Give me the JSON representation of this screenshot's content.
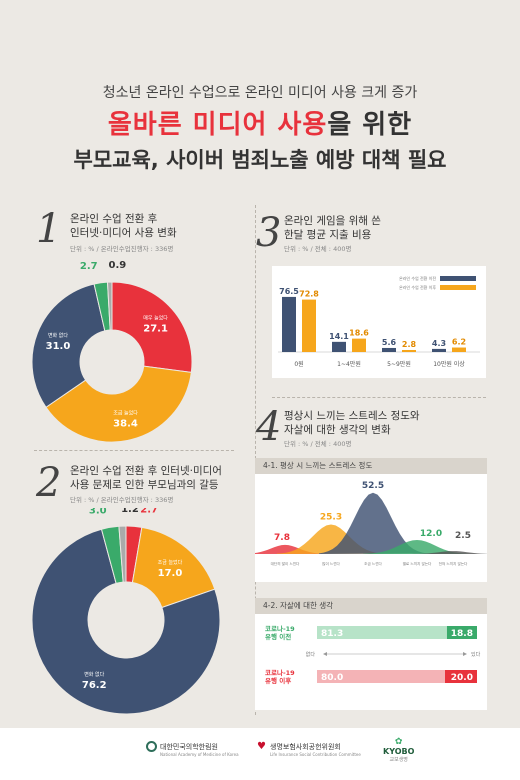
{
  "header": {
    "subtitle": "청소년 온라인 수업으로 온라인 미디어 사용 크게 증가",
    "title_red": "올바른 미디어 사용",
    "title_tail": "을 위한",
    "title_line2": "부모교육, 사이버 범죄노출 예방 대책 필요"
  },
  "sections": {
    "s1": {
      "num": "1",
      "line1": "온라인 수업 전환 후",
      "line2": "인터넷·미디어 사용 변화",
      "unit": "단위 : % / 온라인수업진행자 : 336명"
    },
    "s2": {
      "num": "2",
      "line1": "온라인 수업 전환 후 인터넷·미디어",
      "line2": "사용 문제로 인한 부모님과의 갈등",
      "unit": "단위 : % / 온라인수업진행자 : 336명"
    },
    "s3": {
      "num": "3",
      "line1": "온라인 게임을 위해 쓴",
      "line2": "한달 평균 지출 비용",
      "unit": "단위 : % / 전체 : 400명"
    },
    "s4": {
      "num": "4",
      "line1": "평상시 느끼는 스트레스 정도와",
      "line2": "자살에 대한 생각의 변화",
      "unit": "단위 : % / 전체 : 400명"
    }
  },
  "colors": {
    "red": "#e8323c",
    "orange": "#f6a61c",
    "navy": "#3f5273",
    "green": "#3aaa6a",
    "gray": "#aaaaaa",
    "dark": "#555555"
  },
  "chart_data": [
    {
      "type": "pie",
      "id": "donut1",
      "slices": [
        {
          "label": "매우 늘었다",
          "value": 27.1,
          "color": "#e8323c"
        },
        {
          "label": "조금 늘었다",
          "value": 38.4,
          "color": "#f6a61c"
        },
        {
          "label": "변화 없다",
          "value": 31.0,
          "color": "#3f5273"
        },
        {
          "label": "조금 줄었다",
          "value": 2.7,
          "color": "#3aaa6a"
        },
        {
          "label": "매우 줄었다",
          "value": 0.9,
          "color": "#aaaaaa"
        }
      ]
    },
    {
      "type": "pie",
      "id": "donut2",
      "slices": [
        {
          "label": "매우 늘었다",
          "value": 2.7,
          "color": "#e8323c"
        },
        {
          "label": "조금 늘었다",
          "value": 17.0,
          "color": "#f6a61c"
        },
        {
          "label": "변화 없다",
          "value": 76.2,
          "color": "#3f5273"
        },
        {
          "label": "조금 줄었다",
          "value": 3.0,
          "color": "#3aaa6a"
        },
        {
          "label": "매우 줄었다",
          "value": 1.2,
          "color": "#aaaaaa"
        }
      ]
    },
    {
      "type": "bar",
      "id": "bars3",
      "categories": [
        "0원",
        "1~4만원",
        "5~9만원",
        "10만원 이상"
      ],
      "series": [
        {
          "name": "온라인 수업 전환 이전",
          "values": [
            76.5,
            14.1,
            5.6,
            4.3
          ],
          "color": "#3f5273"
        },
        {
          "name": "온라인 수업 전환 이후",
          "values": [
            72.8,
            18.6,
            2.8,
            6.2
          ],
          "color": "#f6a61c"
        }
      ],
      "ylim": [
        0,
        100
      ]
    },
    {
      "type": "area",
      "id": "stress",
      "title": "4-1. 평상 시 느끼는 스트레스 정도",
      "categories": [
        "대단히 많이 느낀다",
        "많이 느낀다",
        "조금 느낀다",
        "별로 느끼지 않는다",
        "전혀 느끼지 않는다"
      ],
      "values": [
        7.8,
        25.3,
        52.5,
        12.0,
        2.5
      ],
      "colors": [
        "#e8323c",
        "#f6a61c",
        "#3f5273",
        "#3aaa6a",
        "#555555"
      ],
      "ylim": [
        0,
        60
      ]
    },
    {
      "type": "bar",
      "id": "suicide",
      "title": "4-2. 자살에 대한 생각",
      "categories": [
        "코로나-19 유행 이전",
        "코로나-19 유행 이후"
      ],
      "series": [
        {
          "name": "없다",
          "values": [
            81.3,
            80.0
          ]
        },
        {
          "name": "있다",
          "values": [
            18.8,
            20.0
          ]
        }
      ],
      "axis_labels": {
        "left": "없다",
        "right": "있다"
      },
      "row_colors": [
        "#3aaa6a",
        "#e8323c"
      ]
    }
  ],
  "footer": {
    "logo1": "대한민국의학한림원",
    "logo1_sub": "National Academy of Medicine of Korea",
    "logo2": "생명보험사회공헌위원회",
    "logo2_sub": "Life Insurance Social Contribution Committee",
    "logo3": "KYOBO",
    "logo3_sub": "교보생명"
  }
}
